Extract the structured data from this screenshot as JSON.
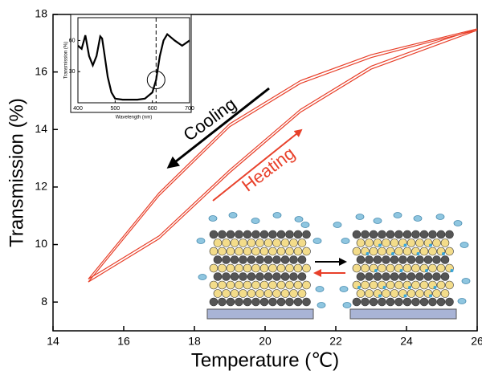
{
  "chart_data": [
    {
      "type": "line",
      "xlabel": "Temperature (℃)",
      "ylabel": "Transmission (%)",
      "x": [
        15,
        17,
        19,
        21,
        23,
        25,
        26
      ],
      "series": [
        {
          "color": "#e8402a",
          "values": [
            8.8,
            11.8,
            14.2,
            15.7,
            16.6,
            17.2,
            17.5
          ]
        },
        {
          "color": "#e8402a",
          "values": [
            8.8,
            10.3,
            12.6,
            14.7,
            16.2,
            17.1,
            17.5
          ]
        },
        {
          "color": "#e8402a",
          "values": [
            8.7,
            11.7,
            14.1,
            15.6,
            16.5,
            17.15,
            17.45
          ]
        },
        {
          "color": "#e8402a",
          "values": [
            8.7,
            10.2,
            12.5,
            14.6,
            16.1,
            17.0,
            17.45
          ]
        }
      ],
      "xlim": [
        14,
        26
      ],
      "ylim": [
        7,
        18
      ],
      "xticks": [
        14,
        16,
        18,
        20,
        22,
        24,
        26
      ],
      "yticks": [
        8,
        10,
        12,
        14,
        16,
        18
      ],
      "annotations": [
        "Cooling",
        "Heating"
      ]
    },
    {
      "type": "line",
      "xlabel": "Wavelength (nm)",
      "ylabel": "Transmission (%)",
      "x": [
        400,
        410,
        420,
        430,
        440,
        450,
        460,
        465,
        470,
        480,
        490,
        500,
        520,
        560,
        580,
        600,
        610,
        620,
        630,
        640,
        650,
        660,
        680,
        700
      ],
      "series": [
        {
          "color": "#000000",
          "values": [
            55,
            52,
            65,
            45,
            36,
            45,
            64,
            62,
            50,
            25,
            10,
            4,
            3,
            3,
            4,
            10,
            22,
            45,
            60,
            66,
            63,
            60,
            55,
            60
          ]
        }
      ],
      "xlim": [
        400,
        700
      ],
      "ylim": [
        0,
        82
      ],
      "xticks": [
        400,
        500,
        600,
        700
      ],
      "yticks": [
        30,
        60
      ],
      "vline": 610
    }
  ]
}
